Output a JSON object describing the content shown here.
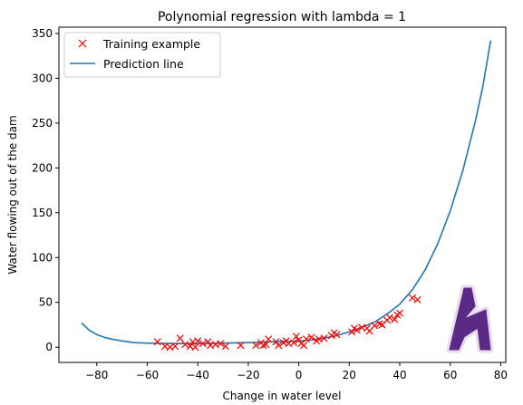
{
  "chart_data": {
    "type": "scatter",
    "title": "Polynomial regression with lambda = 1",
    "xlabel": "Change in water level",
    "ylabel": "Water flowing out of the dam",
    "xlim": [
      -95,
      82
    ],
    "ylim": [
      -17,
      357
    ],
    "xticks": [
      -80,
      -60,
      -40,
      -20,
      0,
      20,
      40,
      60,
      80
    ],
    "yticks": [
      0,
      50,
      100,
      150,
      200,
      250,
      300,
      350
    ],
    "x_tick_labels": [
      "−80",
      "−60",
      "−40",
      "−20",
      "0",
      "20",
      "40",
      "60",
      "80"
    ],
    "y_tick_labels": [
      "0",
      "50",
      "100",
      "150",
      "200",
      "250",
      "300",
      "350"
    ],
    "grid": false,
    "legend_position": "top-left",
    "series": [
      {
        "name": "Training example",
        "kind": "scatter",
        "marker": "x",
        "color": "#ff0000",
        "points": [
          [
            -56,
            6
          ],
          [
            -53,
            1
          ],
          [
            -51,
            0
          ],
          [
            -49,
            1
          ],
          [
            -47,
            10
          ],
          [
            -45,
            3
          ],
          [
            -43,
            1
          ],
          [
            -42,
            6
          ],
          [
            -41,
            0
          ],
          [
            -40,
            7
          ],
          [
            -38,
            4
          ],
          [
            -36,
            6
          ],
          [
            -35,
            2
          ],
          [
            -33,
            3
          ],
          [
            -31,
            4
          ],
          [
            -29,
            1
          ],
          [
            -23,
            2
          ],
          [
            -17,
            2
          ],
          [
            -15,
            5
          ],
          [
            -14,
            2
          ],
          [
            -13,
            3
          ],
          [
            -12,
            9
          ],
          [
            -9,
            6
          ],
          [
            -8,
            2
          ],
          [
            -6,
            5
          ],
          [
            -5,
            7
          ],
          [
            -4,
            4
          ],
          [
            -2,
            5
          ],
          [
            -1,
            12
          ],
          [
            0,
            8
          ],
          [
            1,
            4
          ],
          [
            2,
            2
          ],
          [
            3,
            9
          ],
          [
            5,
            11
          ],
          [
            7,
            7
          ],
          [
            8,
            9
          ],
          [
            10,
            10
          ],
          [
            13,
            13
          ],
          [
            14,
            16
          ],
          [
            15,
            14
          ],
          [
            21,
            17
          ],
          [
            22,
            21
          ],
          [
            23,
            19
          ],
          [
            25,
            22
          ],
          [
            27,
            21
          ],
          [
            28,
            18
          ],
          [
            30,
            24
          ],
          [
            32,
            26
          ],
          [
            33,
            25
          ],
          [
            35,
            30
          ],
          [
            36,
            33
          ],
          [
            38,
            31
          ],
          [
            39,
            36
          ],
          [
            40,
            38
          ],
          [
            45,
            55
          ],
          [
            47,
            53
          ]
        ]
      },
      {
        "name": "Prediction line",
        "kind": "line",
        "color": "#1f77b4",
        "points": [
          [
            -86,
            27
          ],
          [
            -83,
            19
          ],
          [
            -80,
            14
          ],
          [
            -77,
            11
          ],
          [
            -74,
            9
          ],
          [
            -70,
            7
          ],
          [
            -65,
            5
          ],
          [
            -60,
            4.5
          ],
          [
            -50,
            4
          ],
          [
            -40,
            4
          ],
          [
            -30,
            4.5
          ],
          [
            -20,
            5
          ],
          [
            -10,
            6
          ],
          [
            0,
            7
          ],
          [
            5,
            8
          ],
          [
            10,
            10
          ],
          [
            15,
            13
          ],
          [
            20,
            17
          ],
          [
            25,
            22
          ],
          [
            30,
            28
          ],
          [
            35,
            37
          ],
          [
            40,
            48
          ],
          [
            45,
            64
          ],
          [
            50,
            86
          ],
          [
            55,
            115
          ],
          [
            60,
            152
          ],
          [
            65,
            197
          ],
          [
            70,
            253
          ],
          [
            73,
            292
          ],
          [
            76,
            342
          ]
        ]
      }
    ],
    "legend": [
      {
        "label": "Training example",
        "marker": "x",
        "color": "#ff0000"
      },
      {
        "label": "Prediction line",
        "marker": "line",
        "color": "#1f77b4"
      }
    ],
    "watermark_color": "#5b2a86"
  }
}
